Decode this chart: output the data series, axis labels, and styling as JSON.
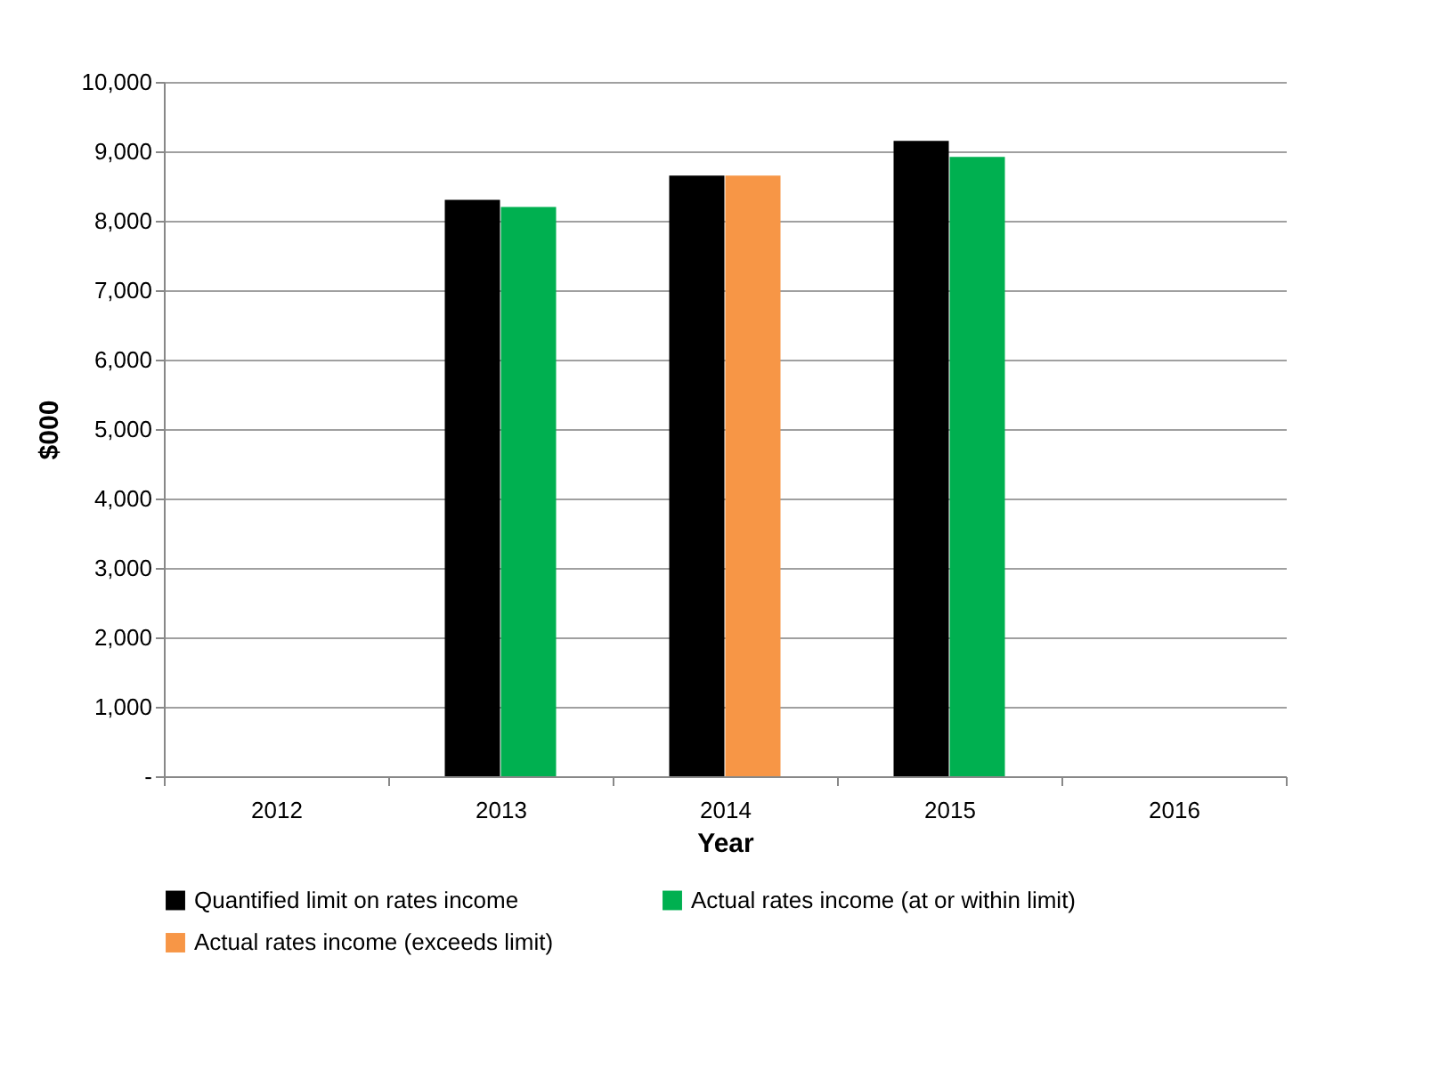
{
  "chart_data": {
    "type": "bar",
    "xlabel": "Year",
    "ylabel": "$000",
    "categories": [
      "2012",
      "2013",
      "2014",
      "2015",
      "2016"
    ],
    "series": [
      {
        "name": "Quantified limit on rates income",
        "color": "#000000",
        "values": [
          null,
          8300,
          8650,
          9150,
          null
        ]
      },
      {
        "name": "Actual rates income (at or within limit)",
        "color": "#00b050",
        "values": [
          null,
          8200,
          null,
          8920,
          null
        ]
      },
      {
        "name": "Actual rates income (exceeds limit)",
        "color": "#f79646",
        "values": [
          null,
          null,
          8650,
          null,
          null
        ]
      }
    ],
    "ylim": [
      0,
      10000
    ],
    "yticks": [
      {
        "value": 0,
        "label": "-"
      },
      {
        "value": 1000,
        "label": "1,000"
      },
      {
        "value": 2000,
        "label": "2,000"
      },
      {
        "value": 3000,
        "label": "3,000"
      },
      {
        "value": 4000,
        "label": "4,000"
      },
      {
        "value": 5000,
        "label": "5,000"
      },
      {
        "value": 6000,
        "label": "6,000"
      },
      {
        "value": 7000,
        "label": "7,000"
      },
      {
        "value": 8000,
        "label": "8,000"
      },
      {
        "value": 9000,
        "label": "9,000"
      },
      {
        "value": 10000,
        "label": "10,000"
      }
    ],
    "grid": "y",
    "legend": "bottom"
  }
}
